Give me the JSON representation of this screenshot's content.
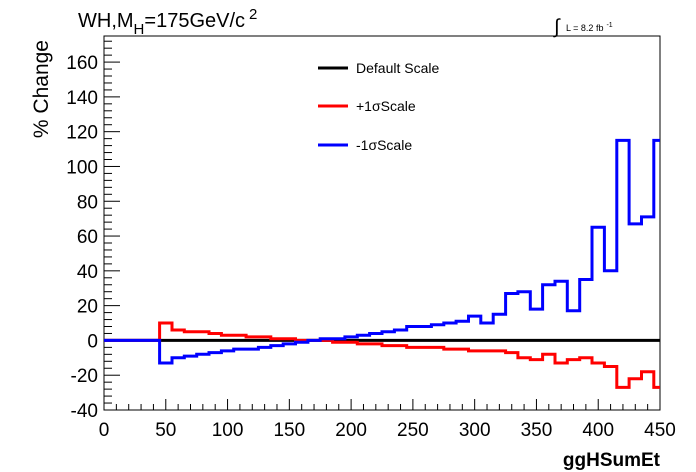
{
  "chart_data": {
    "type": "line",
    "title_main": "WH,M",
    "title_sub": "H",
    "title_rest": "=175GeV/c",
    "title_sup": "2",
    "lumi_main": "L = 8.2 fb",
    "lumi_sup": "-1",
    "xlabel": "ggHSumEt",
    "ylabel": "% Change",
    "xlim": [
      0,
      450
    ],
    "ylim": [
      -40,
      175
    ],
    "xticks": [
      0,
      50,
      100,
      150,
      200,
      250,
      300,
      350,
      400,
      450
    ],
    "yticks": [
      -40,
      -20,
      0,
      20,
      40,
      60,
      80,
      100,
      120,
      140,
      160
    ],
    "grid": false,
    "legend_position": "top-center",
    "bin_edges": [
      0,
      45,
      55,
      65,
      75,
      85,
      95,
      105,
      115,
      125,
      135,
      145,
      155,
      165,
      175,
      185,
      195,
      205,
      215,
      225,
      235,
      245,
      255,
      265,
      275,
      285,
      295,
      305,
      315,
      325,
      335,
      345,
      355,
      365,
      375,
      385,
      395,
      405,
      415,
      425,
      435,
      445,
      450
    ],
    "series": [
      {
        "name": "Default Scale",
        "color": "#000000",
        "values": [
          0,
          0,
          0,
          0,
          0,
          0,
          0,
          0,
          0,
          0,
          0,
          0,
          0,
          0,
          0,
          0,
          0,
          0,
          0,
          0,
          0,
          0,
          0,
          0,
          0,
          0,
          0,
          0,
          0,
          0,
          0,
          0,
          0,
          0,
          0,
          0,
          0,
          0,
          0,
          0,
          0,
          0
        ]
      },
      {
        "name": "+1σScale",
        "color": "#ff0000",
        "values": [
          0,
          10,
          6,
          5,
          5,
          4,
          3,
          3,
          2,
          2,
          1,
          1,
          0,
          0,
          0,
          -1,
          -1,
          -2,
          -2,
          -3,
          -3,
          -4,
          -4,
          -4,
          -5,
          -5,
          -6,
          -6,
          -6,
          -7,
          -10,
          -11,
          -8,
          -13,
          -11,
          -10,
          -13,
          -15,
          -27,
          -22,
          -18,
          -27
        ]
      },
      {
        "name": "-1σScale",
        "color": "#0000ff",
        "values": [
          0,
          -13,
          -10,
          -9,
          -8,
          -7,
          -6,
          -5,
          -5,
          -4,
          -3,
          -2,
          -1,
          0,
          1,
          1,
          2,
          3,
          4,
          5,
          6,
          8,
          8,
          9,
          10,
          11,
          14,
          10,
          15,
          27,
          28,
          18,
          32,
          34,
          17,
          35,
          65,
          40,
          115,
          67,
          71,
          115
        ]
      }
    ]
  }
}
